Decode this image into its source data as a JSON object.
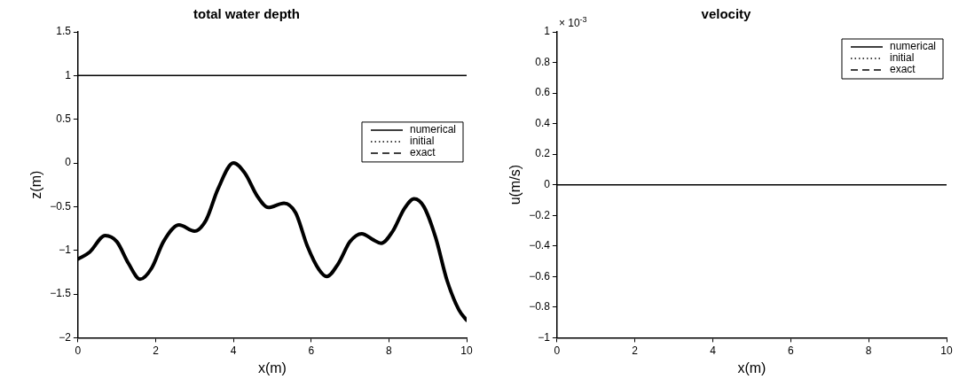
{
  "chart_data": [
    {
      "type": "line",
      "title": "total water depth",
      "xlabel": "x(m)",
      "ylabel": "z(m)",
      "xlim": [
        0,
        10
      ],
      "xticks": [
        0,
        2,
        4,
        6,
        8,
        10
      ],
      "ylim": [
        -2,
        1.5
      ],
      "yticks": [
        -2,
        -1.5,
        -1,
        -0.5,
        0,
        0.5,
        1,
        1.5
      ],
      "grid": false,
      "legend": "right",
      "series": [
        {
          "name": "numerical",
          "color": "#000000",
          "line_style": "solid",
          "x": [
            0,
            10
          ],
          "values": [
            1,
            1
          ]
        },
        {
          "name": "initial",
          "color": "#000000",
          "line_style": "dotted"
        },
        {
          "name": "exact",
          "color": "#000000",
          "line_style": "dashed"
        },
        {
          "color": "#000000",
          "line_style": "solid",
          "x": [
            0,
            0.3,
            0.7,
            1.0,
            1.3,
            1.6,
            1.9,
            2.2,
            2.6,
            3.0,
            3.3,
            3.6,
            4.0,
            4.3,
            4.6,
            4.9,
            5.3,
            5.6,
            5.9,
            6.2,
            6.4,
            6.7,
            7.0,
            7.3,
            7.6,
            7.8,
            8.1,
            8.4,
            8.65,
            8.9,
            9.2,
            9.5,
            9.8,
            10
          ],
          "values": [
            -1.1,
            -1.02,
            -0.83,
            -0.9,
            -1.15,
            -1.33,
            -1.2,
            -0.9,
            -0.71,
            -0.78,
            -0.65,
            -0.3,
            0,
            -0.12,
            -0.37,
            -0.51,
            -0.46,
            -0.57,
            -0.95,
            -1.22,
            -1.3,
            -1.15,
            -0.9,
            -0.81,
            -0.88,
            -0.92,
            -0.78,
            -0.52,
            -0.41,
            -0.5,
            -0.85,
            -1.35,
            -1.68,
            -1.8
          ]
        }
      ]
    },
    {
      "type": "line",
      "title": "velocity",
      "xlabel": "x(m)",
      "ylabel": "u(m/s)",
      "annotations": [
        "× 10$^{-3}$"
      ],
      "xlim": [
        0,
        10
      ],
      "xticks": [
        0,
        2,
        4,
        6,
        8,
        10
      ],
      "ylim": [
        -1,
        1
      ],
      "yticks": [
        -1,
        -0.8,
        -0.6,
        -0.4,
        -0.2,
        0,
        0.2,
        0.4,
        0.6,
        0.8,
        1
      ],
      "grid": false,
      "legend": "top right",
      "series": [
        {
          "name": "numerical",
          "color": "#000000",
          "line_style": "solid",
          "x": [
            0,
            10
          ],
          "values": [
            0,
            0
          ]
        },
        {
          "name": "initial",
          "color": "#000000",
          "line_style": "dotted"
        },
        {
          "name": "exact",
          "color": "#000000",
          "line_style": "dashed"
        }
      ]
    }
  ]
}
